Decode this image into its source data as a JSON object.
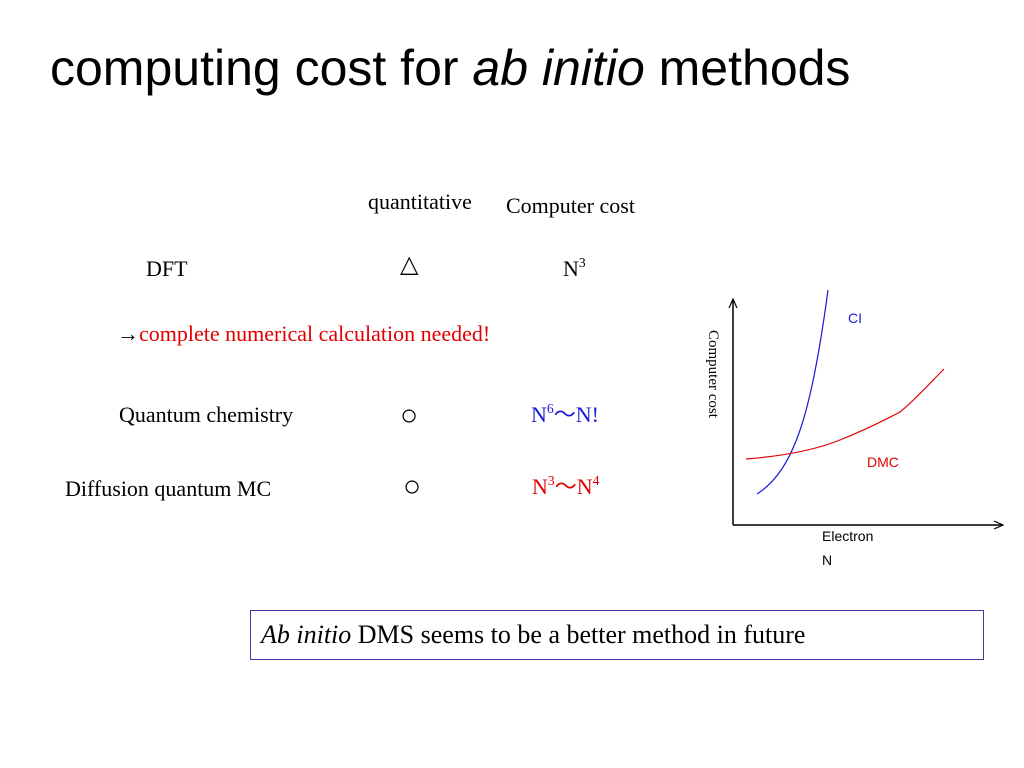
{
  "title": {
    "text_a": "computing cost for ",
    "text_italic": "ab initio",
    "text_b": " methods"
  },
  "table": {
    "header_quantitative": "quantitative",
    "header_cost": "Computer cost",
    "rows": [
      {
        "method": "DFT",
        "symbol": "△",
        "cost_base": "N",
        "cost_exp": "3",
        "cost_mid": "",
        "cost_base2": "",
        "cost_exp2": "",
        "cost_suffix": ""
      },
      {
        "method": "Quantum chemistry",
        "symbol": "○",
        "cost_base": "N",
        "cost_exp": "6",
        "cost_mid": "～",
        "cost_base2": "N!",
        "cost_exp2": "",
        "cost_suffix": ""
      },
      {
        "method": "Diffusion quantum MC",
        "symbol": "○",
        "cost_base": "N",
        "cost_exp": "3",
        "cost_mid": "～",
        "cost_base2": "N",
        "cost_exp2": "4",
        "cost_suffix": ""
      }
    ],
    "note": "→",
    "note_red": "complete numerical calculation needed!"
  },
  "chart": {
    "ylabel": "Computer cost",
    "xlabel_line1": "Electron",
    "xlabel_line2": "N",
    "ci_label": "CI",
    "dmc_label": "DMC",
    "colors": {
      "ci": "#1a1ad6",
      "dmc": "#e00000",
      "axis": "#000000"
    }
  },
  "conclusion": {
    "italic": "Ab initio",
    "rest": " DMS seems to be a better method in future"
  }
}
